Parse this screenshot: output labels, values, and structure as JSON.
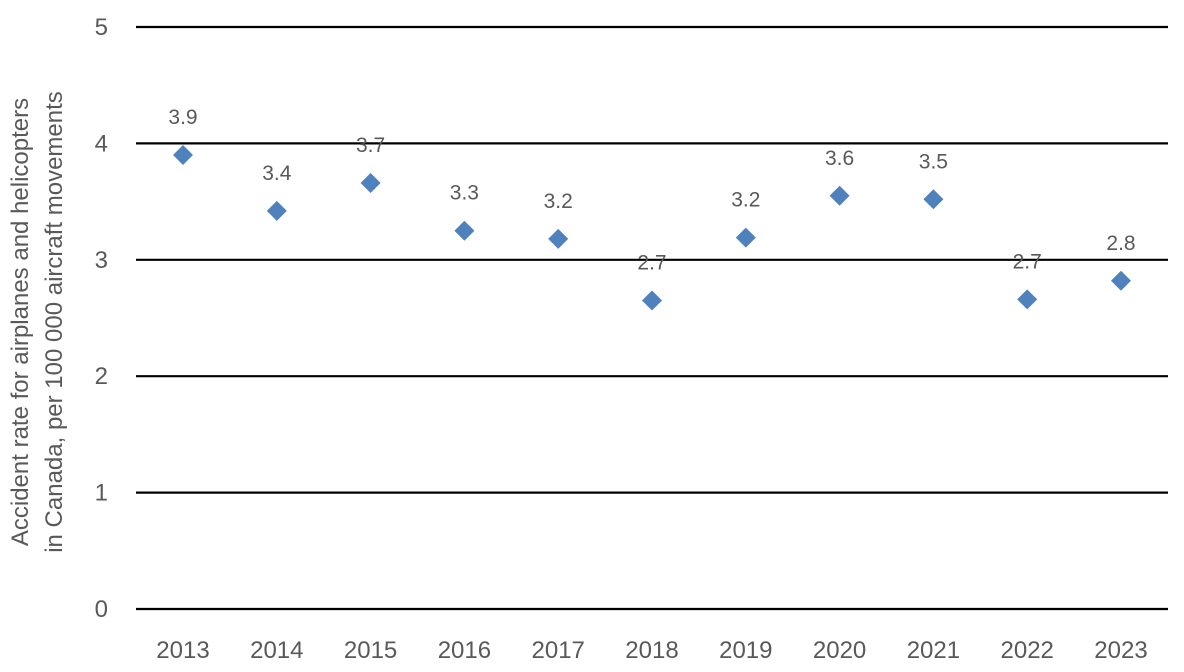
{
  "chart_data": {
    "type": "scatter",
    "title": "",
    "xlabel": "",
    "ylabel_lines": [
      "Accident rate for airplanes and helicopters",
      "in Canada, per 100 000 aircraft movements"
    ],
    "categories": [
      "2013",
      "2014",
      "2015",
      "2016",
      "2017",
      "2018",
      "2019",
      "2020",
      "2021",
      "2022",
      "2023"
    ],
    "values": [
      3.9,
      3.42,
      3.66,
      3.25,
      3.18,
      2.65,
      3.19,
      3.55,
      3.52,
      2.66,
      2.82
    ],
    "data_labels": [
      "3.9",
      "3.4",
      "3.7",
      "3.3",
      "3.2",
      "2.7",
      "3.2",
      "3.6",
      "3.5",
      "2.7",
      "2.8"
    ],
    "yticks": [
      "0",
      "1",
      "2",
      "3",
      "4",
      "5"
    ],
    "ylim": [
      0,
      5
    ],
    "grid": true,
    "legend": "none",
    "marker": "diamond",
    "marker_color": "#4f81bd"
  }
}
